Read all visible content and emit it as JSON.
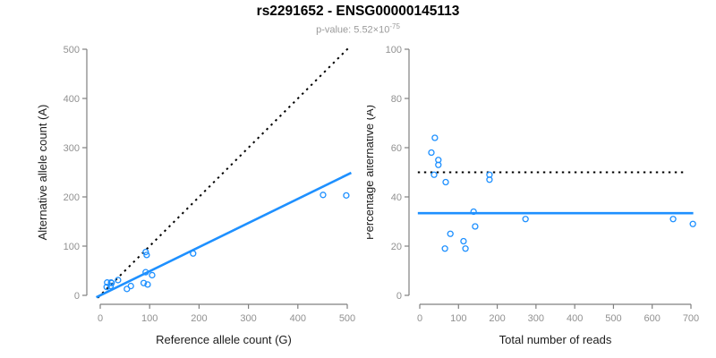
{
  "header": {
    "title": "rs2291652 - ENSG00000145113",
    "pvalue_prefix": "p-value: 5.52×10",
    "pvalue_exponent": "-75"
  },
  "colors": {
    "accent_blue": "#1E90FF",
    "line_black": "#000000",
    "axis_gray": "#808080",
    "tick_label_gray": "#919191",
    "axis_title_dark": "#1c1c1c"
  },
  "chart_data": [
    {
      "id": "ref-vs-alt",
      "type": "scatter",
      "xlabel": "Reference allele count (G)",
      "ylabel": "Alternative allele count (A)",
      "xlim": [
        0,
        500
      ],
      "ylim": [
        0,
        500
      ],
      "xticks": [
        0,
        100,
        200,
        300,
        400,
        500
      ],
      "yticks": [
        0,
        100,
        200,
        300,
        400,
        500
      ],
      "grid": false,
      "points": [
        [
          13,
          17
        ],
        [
          14,
          26
        ],
        [
          22,
          26
        ],
        [
          23,
          25
        ],
        [
          21,
          19
        ],
        [
          36,
          31
        ],
        [
          54,
          13
        ],
        [
          62,
          19
        ],
        [
          88,
          25
        ],
        [
          96,
          22
        ],
        [
          92,
          47
        ],
        [
          105,
          41
        ],
        [
          92,
          88
        ],
        [
          94,
          82
        ],
        [
          188,
          85
        ],
        [
          451,
          204
        ],
        [
          498,
          203
        ]
      ],
      "lines": [
        {
          "name": "identity-line",
          "style": "dotted",
          "color": "#000000",
          "width": 2,
          "from": [
            -5,
            -5
          ],
          "to": [
            502,
            502
          ]
        },
        {
          "name": "fit-line",
          "style": "solid",
          "color": "#1E90FF",
          "width": 2.6,
          "from": [
            -8,
            -4
          ],
          "to": [
            508,
            249
          ]
        }
      ]
    },
    {
      "id": "reads-vs-percentage",
      "type": "scatter",
      "xlabel": "Total number of reads",
      "ylabel": "Percentage alternative (A)",
      "xlim": [
        0,
        700
      ],
      "ylim": [
        0,
        100
      ],
      "xticks": [
        0,
        100,
        200,
        300,
        400,
        500,
        600,
        700
      ],
      "yticks": [
        0,
        20,
        40,
        60,
        80,
        100
      ],
      "grid": false,
      "points": [
        [
          30,
          58
        ],
        [
          39,
          64
        ],
        [
          48,
          55
        ],
        [
          48,
          53
        ],
        [
          37,
          49
        ],
        [
          67,
          46
        ],
        [
          65,
          19
        ],
        [
          79,
          25
        ],
        [
          113,
          22
        ],
        [
          118,
          19
        ],
        [
          139,
          34
        ],
        [
          143,
          28
        ],
        [
          180,
          49
        ],
        [
          180,
          47
        ],
        [
          273,
          31
        ],
        [
          654,
          31
        ],
        [
          705,
          29
        ]
      ],
      "lines": [
        {
          "name": "fifty-percent-line",
          "style": "dotted",
          "color": "#000000",
          "width": 2,
          "from": [
            -5,
            50
          ],
          "to": [
            690,
            50
          ]
        },
        {
          "name": "mean-percentage-line",
          "style": "solid",
          "color": "#1E90FF",
          "width": 2.6,
          "from": [
            -5,
            33.4
          ],
          "to": [
            706,
            33.4
          ]
        }
      ]
    }
  ]
}
